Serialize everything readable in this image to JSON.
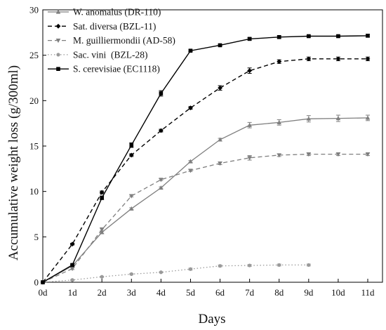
{
  "chart_data": {
    "type": "line",
    "title": "",
    "xlabel": "Days",
    "ylabel": "Accumulative weight loss (g/300ml)",
    "x": [
      0,
      1,
      2,
      3,
      4,
      5,
      6,
      7,
      8,
      9,
      10,
      11
    ],
    "x_tick_labels": [
      "0d",
      "1d",
      "2d",
      "3d",
      "4d",
      "5d",
      "6d",
      "7d",
      "8d",
      "9d",
      "10d",
      "11d"
    ],
    "xlim": [
      0,
      11
    ],
    "ylim": [
      0,
      30
    ],
    "y_ticks": [
      0,
      5,
      10,
      15,
      20,
      25,
      30
    ],
    "grid": false,
    "legend_position": "top-left",
    "series": [
      {
        "name": "W. anomalus (DR-110)",
        "color": "#7f7f7f",
        "dash": "solid",
        "marker": "triangle-up",
        "x": [
          0,
          1,
          2,
          3,
          4,
          5,
          6,
          7,
          8,
          9,
          10,
          11
        ],
        "values": [
          0,
          1.8,
          5.5,
          8.1,
          10.4,
          13.3,
          15.7,
          17.3,
          17.6,
          18.0,
          18.05,
          18.1
        ],
        "errors": [
          0,
          0.1,
          0.15,
          0.1,
          0.1,
          0.1,
          0.15,
          0.3,
          0.3,
          0.35,
          0.35,
          0.3
        ]
      },
      {
        "name": "Sat. diversa (BZL-11)",
        "color": "#000000",
        "dash": "dashed",
        "marker": "diamond",
        "x": [
          0,
          1,
          2,
          3,
          4,
          5,
          6,
          7,
          8,
          9,
          10,
          11
        ],
        "values": [
          0,
          4.2,
          9.9,
          14.0,
          16.7,
          19.2,
          21.4,
          23.3,
          24.3,
          24.6,
          24.6,
          24.6
        ],
        "errors": [
          0,
          0.1,
          0.15,
          0.15,
          0.15,
          0.15,
          0.25,
          0.3,
          0.2,
          0.2,
          0.2,
          0.2
        ]
      },
      {
        "name": "M. guilliermondii (AD-58)",
        "color": "#7f7f7f",
        "dash": "dashed",
        "marker": "triangle-down",
        "x": [
          0,
          1,
          2,
          3,
          4,
          5,
          6,
          7,
          8,
          9,
          10,
          11
        ],
        "values": [
          0,
          1.5,
          5.8,
          9.5,
          11.3,
          12.3,
          13.1,
          13.7,
          14.0,
          14.1,
          14.1,
          14.1
        ],
        "errors": [
          0,
          0.1,
          0.2,
          0.1,
          0.1,
          0.1,
          0.15,
          0.25,
          0.15,
          0.15,
          0.15,
          0.15
        ]
      },
      {
        "name": "Sac. vini  (BZL-28)",
        "color": "#9a9a9a",
        "dash": "dotted",
        "marker": "circle",
        "x": [
          0,
          1,
          2,
          3,
          4,
          5,
          6,
          7,
          8,
          9
        ],
        "values": [
          0,
          0.25,
          0.6,
          0.9,
          1.1,
          1.45,
          1.8,
          1.85,
          1.9,
          1.9
        ],
        "errors": [
          0,
          0.05,
          0.05,
          0.05,
          0.05,
          0.1,
          0.1,
          0.1,
          0.1,
          0.1
        ]
      },
      {
        "name": "S. cerevisiae (EC1118)",
        "color": "#000000",
        "dash": "solid",
        "marker": "square",
        "x": [
          0,
          1,
          2,
          3,
          4,
          5,
          6,
          7,
          8,
          9,
          10,
          11
        ],
        "values": [
          0,
          1.9,
          9.3,
          15.1,
          20.8,
          25.5,
          26.1,
          26.8,
          27.0,
          27.1,
          27.1,
          27.15
        ],
        "errors": [
          0,
          0.1,
          0.2,
          0.25,
          0.3,
          0.1,
          0.1,
          0.15,
          0.15,
          0.1,
          0.1,
          0.15
        ]
      }
    ]
  }
}
